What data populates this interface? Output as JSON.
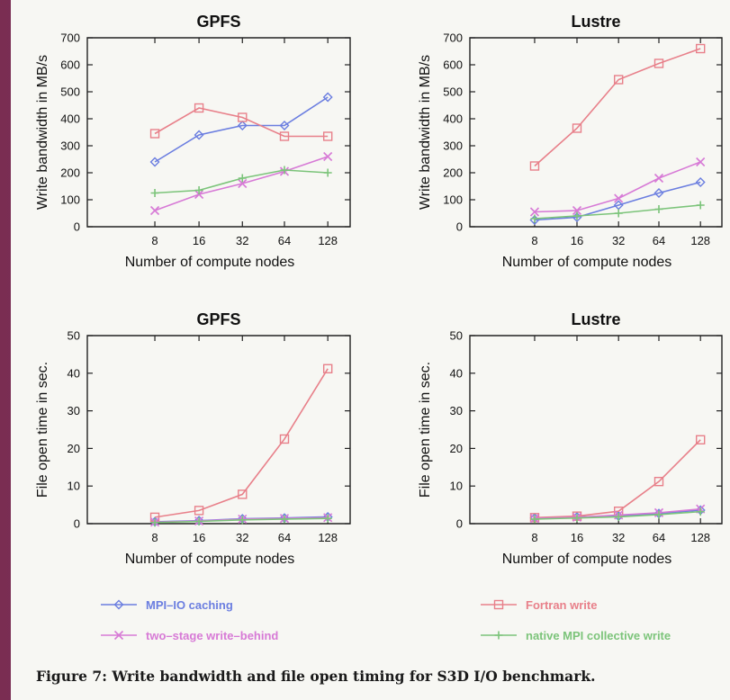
{
  "caption": "Figure 7: Write bandwidth and file open timing for S3D I/O benchmark.",
  "colors": {
    "mpi_io_caching": "#6b7ee0",
    "fortran_write": "#e8808a",
    "two_stage_write_behind": "#d77ad6",
    "native_mpi_collective_write": "#7cc47a"
  },
  "legend": [
    {
      "label": "MPI–IO caching",
      "color_key": "mpi_io_caching",
      "marker": "diamond"
    },
    {
      "label": "Fortran write",
      "color_key": "fortran_write",
      "marker": "square"
    },
    {
      "label": "two–stage write–behind",
      "color_key": "two_stage_write_behind",
      "marker": "x"
    },
    {
      "label": "native MPI collective write",
      "color_key": "native_mpi_collective_write",
      "marker": "plus"
    }
  ],
  "chart_data": [
    {
      "type": "line",
      "title": "GPFS",
      "xlabel": "Number of compute nodes",
      "ylabel": "Write bandwidth in MB/s",
      "categories": [
        "8",
        "16",
        "32",
        "64",
        "128"
      ],
      "ylim": [
        0,
        700
      ],
      "yticks": [
        0,
        100,
        200,
        300,
        400,
        500,
        600,
        700
      ],
      "series": [
        {
          "name": "MPI–IO caching",
          "color_key": "mpi_io_caching",
          "marker": "diamond",
          "values": [
            240,
            340,
            375,
            375,
            480
          ]
        },
        {
          "name": "Fortran write",
          "color_key": "fortran_write",
          "marker": "square",
          "values": [
            345,
            440,
            405,
            335,
            335
          ]
        },
        {
          "name": "two–stage write–behind",
          "color_key": "two_stage_write_behind",
          "marker": "x",
          "values": [
            60,
            120,
            160,
            205,
            260
          ]
        },
        {
          "name": "native MPI collective write",
          "color_key": "native_mpi_collective_write",
          "marker": "plus",
          "values": [
            125,
            135,
            180,
            210,
            200
          ]
        }
      ]
    },
    {
      "type": "line",
      "title": "Lustre",
      "xlabel": "Number of compute nodes",
      "ylabel": "Write bandwidth in MB/s",
      "categories": [
        "8",
        "16",
        "32",
        "64",
        "128"
      ],
      "ylim": [
        0,
        700
      ],
      "yticks": [
        0,
        100,
        200,
        300,
        400,
        500,
        600,
        700
      ],
      "series": [
        {
          "name": "MPI–IO caching",
          "color_key": "mpi_io_caching",
          "marker": "diamond",
          "values": [
            25,
            35,
            80,
            125,
            165
          ]
        },
        {
          "name": "Fortran write",
          "color_key": "fortran_write",
          "marker": "square",
          "values": [
            225,
            365,
            545,
            605,
            660
          ]
        },
        {
          "name": "two–stage write–behind",
          "color_key": "two_stage_write_behind",
          "marker": "x",
          "values": [
            55,
            60,
            105,
            180,
            240
          ]
        },
        {
          "name": "native MPI collective write",
          "color_key": "native_mpi_collective_write",
          "marker": "plus",
          "values": [
            30,
            40,
            50,
            65,
            80
          ]
        }
      ]
    },
    {
      "type": "line",
      "title": "GPFS",
      "xlabel": "Number of compute nodes",
      "ylabel": "File open time in sec.",
      "categories": [
        "8",
        "16",
        "32",
        "64",
        "128"
      ],
      "ylim": [
        0,
        50
      ],
      "yticks": [
        0,
        10,
        20,
        30,
        40,
        50
      ],
      "series": [
        {
          "name": "MPI–IO caching",
          "color_key": "mpi_io_caching",
          "marker": "diamond",
          "values": [
            0.5,
            0.8,
            1.3,
            1.5,
            1.8
          ]
        },
        {
          "name": "Fortran write",
          "color_key": "fortran_write",
          "marker": "square",
          "values": [
            1.7,
            3.5,
            7.8,
            22.5,
            41.2
          ]
        },
        {
          "name": "two–stage write–behind",
          "color_key": "two_stage_write_behind",
          "marker": "x",
          "values": [
            0.4,
            0.7,
            1.2,
            1.4,
            1.6
          ]
        },
        {
          "name": "native MPI collective write",
          "color_key": "native_mpi_collective_write",
          "marker": "plus",
          "values": [
            0.3,
            0.6,
            1.0,
            1.2,
            1.4
          ]
        }
      ]
    },
    {
      "type": "line",
      "title": "Lustre",
      "xlabel": "Number of compute nodes",
      "ylabel": "File open time in sec.",
      "categories": [
        "8",
        "16",
        "32",
        "64",
        "128"
      ],
      "ylim": [
        0,
        50
      ],
      "yticks": [
        0,
        10,
        20,
        30,
        40,
        50
      ],
      "series": [
        {
          "name": "MPI–IO caching",
          "color_key": "mpi_io_caching",
          "marker": "diamond",
          "values": [
            1.5,
            1.8,
            2.0,
            2.7,
            3.6
          ]
        },
        {
          "name": "Fortran write",
          "color_key": "fortran_write",
          "marker": "square",
          "values": [
            1.6,
            2.0,
            3.3,
            11.2,
            22.3
          ]
        },
        {
          "name": "two–stage write–behind",
          "color_key": "two_stage_write_behind",
          "marker": "x",
          "values": [
            1.4,
            1.7,
            2.3,
            2.9,
            3.9
          ]
        },
        {
          "name": "native MPI collective write",
          "color_key": "native_mpi_collective_write",
          "marker": "plus",
          "values": [
            1.2,
            1.5,
            1.8,
            2.4,
            3.2
          ]
        }
      ]
    }
  ]
}
